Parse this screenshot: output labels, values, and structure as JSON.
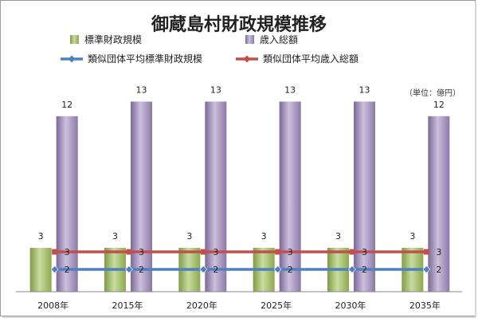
{
  "chart_data": {
    "type": "bar",
    "title": "御蔵島村財政規模推移",
    "unit_note": "（単位：億円）",
    "categories": [
      "2008年",
      "2015年",
      "2020年",
      "2025年",
      "2030年",
      "2035年"
    ],
    "ylim": [
      0,
      14
    ],
    "grid": false,
    "legend_position": "top",
    "series": [
      {
        "name": "標準財政規模",
        "kind": "bar",
        "color": "#9BBB59",
        "values": [
          3,
          3,
          3,
          3,
          3,
          3
        ]
      },
      {
        "name": "歳入総額",
        "kind": "bar",
        "color": "#8064A2",
        "values": [
          12,
          13,
          13,
          13,
          13,
          12
        ]
      },
      {
        "name": "類似団体平均標準財政規模",
        "kind": "line",
        "color": "#4F81BD",
        "values": [
          2,
          2,
          2,
          2,
          2,
          2
        ]
      },
      {
        "name": "類似団体平均歳入総額",
        "kind": "line",
        "color": "#C0504D",
        "values": [
          3,
          3,
          3,
          3,
          3,
          3
        ]
      }
    ]
  }
}
